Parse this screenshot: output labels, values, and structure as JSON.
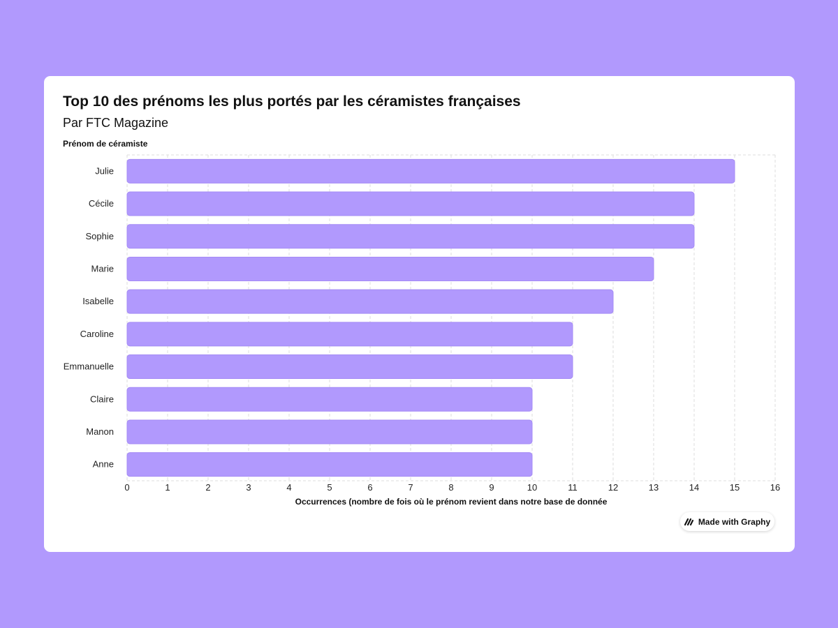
{
  "chart_data": {
    "type": "bar",
    "orientation": "horizontal",
    "title": "Top 10 des prénoms les plus portés par les céramistes françaises",
    "subtitle": "Par FTC Magazine",
    "ylabel": "Prénom de céramiste",
    "xlabel": "Occurrences (nombre de fois où le prénom revient dans notre base de donnée",
    "categories": [
      "Julie",
      "Cécile",
      "Sophie",
      "Marie",
      "Isabelle",
      "Caroline",
      "Emmanuelle",
      "Claire",
      "Manon",
      "Anne"
    ],
    "values": [
      15,
      14,
      14,
      13,
      12,
      11,
      11,
      10,
      10,
      10
    ],
    "xlim": [
      0,
      16
    ],
    "xticks": [
      "0",
      "1",
      "2",
      "3",
      "4",
      "5",
      "6",
      "7",
      "8",
      "9",
      "10",
      "11",
      "12",
      "13",
      "14",
      "15",
      "16"
    ],
    "grid": true,
    "bar_color": "#b199fd",
    "bar_border_color": "#a48af5",
    "grid_color": "#dddddd"
  },
  "badge": {
    "label": "Made with Graphy",
    "icon": "graphy-logo-icon"
  },
  "colors": {
    "background": "#b199fd",
    "card": "#ffffff",
    "text": "#111111"
  }
}
